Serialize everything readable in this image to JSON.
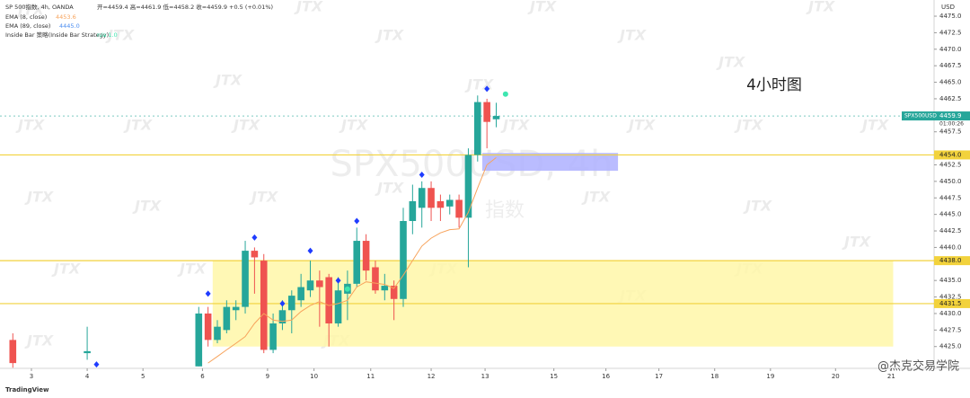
{
  "chart_data": {
    "type": "candlestick",
    "header": {
      "symbol": "SP 500指数, 4h, OANDA",
      "ohlc": "开=4459.4 高=4461.9 低=4458.2 收=4459.9 +0.5 (+0.01%)",
      "ema_fast": "EMA (8, close)",
      "ema_fast_value": "4453.6",
      "ema_slow": "EMA (89, close)",
      "ema_slow_value": "4445.0",
      "strategy": "Inside Bar 策略(Inside Bar Strategy)",
      "strategy_value": "n/a  1.0"
    },
    "annotation": "4小时图",
    "watermark": "SPX500USD, 4h",
    "watermark_sub": "指数",
    "watermark_logo": "JTX",
    "currency": "USD",
    "symbol_tag": "SPX500USD",
    "countdown": "01:00:26",
    "footer_logo": "TradingView",
    "footer_credit": "@杰克交易学院",
    "colors": {
      "up": "#26a69a",
      "down": "#ef5350"
    },
    "x": [
      -2,
      6,
      18,
      19,
      20,
      21,
      22,
      23,
      24,
      25,
      26,
      27,
      28,
      29,
      30,
      31,
      32,
      33,
      34,
      35,
      36,
      37,
      38,
      39,
      40,
      41,
      42,
      43,
      44,
      45,
      46,
      47,
      48,
      49,
      50
    ],
    "open": [
      4426,
      4424,
      4422,
      4430,
      4426,
      4427.5,
      4430.5,
      4431,
      4439.5,
      4438,
      4424.5,
      4428.5,
      4430.5,
      4432,
      4433.5,
      4435,
      4435.5,
      4428.5,
      4433,
      4434.5,
      4441,
      4437,
      4433.5,
      4434.2,
      4432.2,
      4444,
      4446,
      4449,
      4447,
      4446.2,
      4447.2,
      4444.5,
      4454,
      4462,
      4459.4
    ],
    "close": [
      4422.5,
      4424.3,
      4430,
      4426,
      4428,
      4431,
      4431,
      4439.5,
      4438.5,
      4424.5,
      4428.5,
      4430.5,
      4432.7,
      4434,
      4435,
      4434,
      4428.5,
      4433.5,
      4434.5,
      4441,
      4436.5,
      4433.5,
      4434.2,
      4432.2,
      4444,
      4447,
      4449,
      4446,
      4446,
      4447.2,
      4444.5,
      4454,
      4462,
      4459,
      4459.9
    ],
    "high": [
      4427,
      4428,
      4431,
      4431,
      4429,
      4432,
      4432,
      4441,
      4440,
      4439,
      4430,
      4432,
      4433.5,
      4436,
      4438,
      4436.5,
      4436,
      4435.5,
      4436.5,
      4443,
      4442,
      4438,
      4436,
      4435,
      4446,
      4449.5,
      4450,
      4450,
      4448,
      4448,
      4448,
      4455,
      4463,
      4462.5,
      4461.9
    ],
    "low": [
      4421.8,
      4423,
      4422,
      4425,
      4425.5,
      4427,
      4429,
      4430,
      4433,
      4424,
      4424,
      4427.5,
      4427,
      4431,
      4432.5,
      4428,
      4425,
      4428,
      4429,
      4434,
      4435,
      4433,
      4432,
      4429,
      4431,
      4442,
      4443,
      4444,
      4444,
      4445,
      4443,
      4437,
      4453,
      4455,
      4458.2
    ],
    "series": [
      {
        "name": "EMA (8, close)",
        "color": "#f7a35c",
        "x": [
          19,
          20,
          21,
          22,
          23,
          24,
          25,
          26,
          27,
          28,
          29,
          30,
          31,
          32,
          33,
          34,
          35,
          36,
          37,
          38,
          39,
          40,
          41,
          42,
          43,
          44,
          45,
          46,
          47,
          48,
          49,
          50
        ],
        "values": [
          4422.5,
          4423.5,
          4424.5,
          4425.5,
          4426.5,
          4428.5,
          4430,
          4429,
          4428.8,
          4429,
          4430.3,
          4431.2,
          4431.8,
          4431.2,
          4431.5,
          4432,
          4434,
          4434.8,
          4434.6,
          4434.4,
          4433.8,
          4435.8,
          4438,
          4440.2,
          4441.4,
          4442.2,
          4442.7,
          4442.8,
          4445.3,
          4449,
          4452.5,
          4453.6
        ]
      }
    ],
    "markers": {
      "diamond_color": "#1f3cff",
      "dot_color": "#3ee6b0",
      "diamond_x": [
        7,
        19,
        24,
        27,
        30,
        33,
        35,
        42,
        49
      ],
      "diamond_y": [
        4422.3,
        4433,
        4441.5,
        4431.5,
        4439.5,
        4435,
        4444,
        4451,
        4464
      ],
      "dot_x": [
        34,
        51
      ],
      "dot_y": [
        4433.7,
        4463.2
      ]
    },
    "levels": [
      {
        "value": 4454.0,
        "label": "4454.0"
      },
      {
        "value": 4438.0,
        "label": "4438.0"
      },
      {
        "value": 4431.5,
        "label": "4431.5"
      }
    ],
    "level_color": "#f2d23c",
    "zones": [
      {
        "x": [
          19.5,
          92.7
        ],
        "y": [
          4425,
          4438
        ],
        "color": "#fff7a8"
      },
      {
        "x": [
          48.5,
          63.1
        ],
        "y": [
          4451.6,
          4454.3
        ],
        "color": "#aeb0ff"
      }
    ],
    "xlim": [
      -3.38,
      97.1
    ],
    "ylim": [
      4421.7,
      4477.45
    ],
    "xticks": [
      {
        "value": 0,
        "label": "3"
      },
      {
        "value": 6,
        "label": "4"
      },
      {
        "value": 12,
        "label": "5"
      },
      {
        "value": 18.4,
        "label": "6"
      },
      {
        "value": 25.4,
        "label": "9"
      },
      {
        "value": 30.4,
        "label": "10"
      },
      {
        "value": 36.5,
        "label": "11"
      },
      {
        "value": 43,
        "label": "12"
      },
      {
        "value": 48.8,
        "label": "13"
      },
      {
        "value": 56.2,
        "label": "15"
      },
      {
        "value": 61.8,
        "label": "16"
      },
      {
        "value": 67.5,
        "label": "17"
      },
      {
        "value": 73.5,
        "label": "18"
      },
      {
        "value": 79.5,
        "label": "19"
      },
      {
        "value": 86.5,
        "label": "20"
      },
      {
        "value": 92.5,
        "label": "21"
      }
    ],
    "yticks": [
      {
        "value": 4425,
        "label": "4425.0"
      },
      {
        "value": 4427.5,
        "label": "4427.5"
      },
      {
        "value": 4430,
        "label": "4430.0"
      },
      {
        "value": 4432.5,
        "label": "4432.5"
      },
      {
        "value": 4435,
        "label": "4435.0"
      },
      {
        "value": 4440,
        "label": "4440.0"
      },
      {
        "value": 4442.5,
        "label": "4442.5"
      },
      {
        "value": 4445,
        "label": "4445.0"
      },
      {
        "value": 4447.5,
        "label": "4447.5"
      },
      {
        "value": 4450,
        "label": "4450.0"
      },
      {
        "value": 4452.5,
        "label": "4452.5"
      },
      {
        "value": 4457.5,
        "label": "4457.5"
      },
      {
        "value": 4462.5,
        "label": "4462.5"
      },
      {
        "value": 4465,
        "label": "4465.0"
      },
      {
        "value": 4467.5,
        "label": "4467.5"
      },
      {
        "value": 4470,
        "label": "4470.0"
      },
      {
        "value": 4472.5,
        "label": "4472.5"
      },
      {
        "value": 4475,
        "label": "4475.0"
      }
    ]
  }
}
